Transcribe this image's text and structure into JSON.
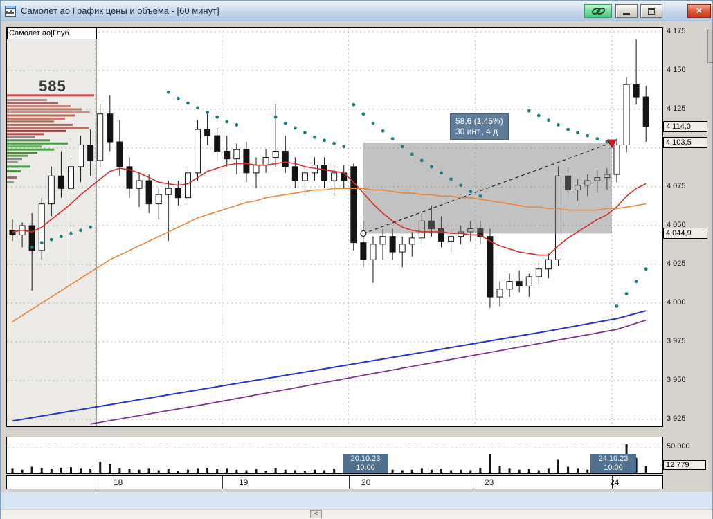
{
  "window": {
    "title": "Самолет ао График цены и объёма - [60 минут]"
  },
  "chart": {
    "instrument_label": "Самолет ао[Глуб",
    "profile_value": "585",
    "tooltip": {
      "line1": "58,6 (1.45%)",
      "line2": "30 инт., 4 д"
    },
    "price_labels": [
      {
        "price": 4114.0,
        "label": "4 114,0"
      },
      {
        "price": 4103.5,
        "label": "4 103,5"
      },
      {
        "price": 4044.9,
        "label": "4 044,9"
      }
    ]
  },
  "volume_pane": {
    "axis_label": "50 000",
    "current_label": "12 779",
    "badges": [
      {
        "date": "20.10.23",
        "time": "10:00"
      },
      {
        "date": "24.10.23",
        "time": "10:00"
      }
    ]
  },
  "time_axis": {
    "labels": [
      "18",
      "19",
      "20",
      "23",
      "24"
    ]
  },
  "chart_data": {
    "type": "candlestick",
    "instrument": "Самолет ао",
    "interval": "60 минут",
    "price_axis": {
      "min": 3925,
      "max": 4175,
      "step": 25,
      "ticks": [
        {
          "value": 4175,
          "label": "4 175"
        },
        {
          "value": 4150,
          "label": "4 150"
        },
        {
          "value": 4125,
          "label": "4 125"
        },
        {
          "value": 4075,
          "label": "4 075"
        },
        {
          "value": 4050,
          "label": "4 050"
        },
        {
          "value": 4025,
          "label": "4 025"
        },
        {
          "value": 4000,
          "label": "4 000"
        },
        {
          "value": 3975,
          "label": "3 975"
        },
        {
          "value": 3950,
          "label": "3 950"
        },
        {
          "value": 3925,
          "label": "3 925"
        }
      ]
    },
    "grid_prices": [
      4175,
      4150,
      4125,
      4100,
      4075,
      4050,
      4025,
      4000,
      3975,
      3950,
      3925
    ],
    "day_start_indices": [
      9,
      22,
      35,
      48,
      62
    ],
    "candles": [
      [
        4047,
        4054,
        4040,
        4044
      ],
      [
        4044,
        4052,
        4036,
        4050
      ],
      [
        4050,
        4058,
        4008,
        4034
      ],
      [
        4034,
        4068,
        4028,
        4064
      ],
      [
        4064,
        4088,
        4056,
        4082
      ],
      [
        4082,
        4098,
        4068,
        4074
      ],
      [
        4074,
        4094,
        4010,
        4088
      ],
      [
        4088,
        4108,
        4078,
        4102
      ],
      [
        4102,
        4112,
        4082,
        4092
      ],
      [
        4092,
        4128,
        4088,
        4122
      ],
      [
        4122,
        4134,
        4098,
        4104
      ],
      [
        4104,
        4118,
        4082,
        4088
      ],
      [
        4088,
        4094,
        4068,
        4074
      ],
      [
        4074,
        4084,
        4062,
        4079
      ],
      [
        4079,
        4083,
        4058,
        4064
      ],
      [
        4064,
        4074,
        4054,
        4070
      ],
      [
        4070,
        4079,
        4040,
        4074
      ],
      [
        4074,
        4079,
        4063,
        4068
      ],
      [
        4068,
        4088,
        4064,
        4084
      ],
      [
        4084,
        4118,
        4079,
        4112
      ],
      [
        4112,
        4123,
        4102,
        4108
      ],
      [
        4108,
        4113,
        4092,
        4098
      ],
      [
        4098,
        4108,
        4088,
        4093
      ],
      [
        4093,
        4103,
        4083,
        4099
      ],
      [
        4099,
        4104,
        4078,
        4084
      ],
      [
        4084,
        4094,
        4074,
        4089
      ],
      [
        4089,
        4099,
        4084,
        4094
      ],
      [
        4094,
        4128,
        4088,
        4098
      ],
      [
        4098,
        4108,
        4084,
        4088
      ],
      [
        4088,
        4094,
        4074,
        4079
      ],
      [
        4079,
        4089,
        4069,
        4084
      ],
      [
        4084,
        4094,
        4079,
        4089
      ],
      [
        4089,
        4094,
        4074,
        4079
      ],
      [
        4079,
        4089,
        4069,
        4084
      ],
      [
        4084,
        4089,
        4074,
        4079
      ],
      [
        4088,
        4090,
        4034,
        4039
      ],
      [
        4039,
        4053,
        4023,
        4028
      ],
      [
        4028,
        4043,
        4013,
        4038
      ],
      [
        4038,
        4048,
        4028,
        4043
      ],
      [
        4043,
        4048,
        4028,
        4033
      ],
      [
        4033,
        4043,
        4023,
        4038
      ],
      [
        4038,
        4046,
        4030,
        4042
      ],
      [
        4042,
        4058,
        4038,
        4053
      ],
      [
        4053,
        4063,
        4043,
        4048
      ],
      [
        4048,
        4056,
        4036,
        4040
      ],
      [
        4040,
        4048,
        4033,
        4043
      ],
      [
        4043,
        4050,
        4038,
        4046
      ],
      [
        4046,
        4053,
        4040,
        4048
      ],
      [
        4048,
        4053,
        4038,
        4043
      ],
      [
        4043,
        4048,
        3997,
        4004
      ],
      [
        4004,
        4014,
        3998,
        4009
      ],
      [
        4009,
        4019,
        4004,
        4014
      ],
      [
        4014,
        4021,
        4007,
        4011
      ],
      [
        4011,
        4019,
        4004,
        4017
      ],
      [
        4017,
        4026,
        4012,
        4022
      ],
      [
        4022,
        4032,
        4016,
        4028
      ],
      [
        4028,
        4088,
        4024,
        4082
      ],
      [
        4082,
        4088,
        4068,
        4073
      ],
      [
        4073,
        4080,
        4066,
        4076
      ],
      [
        4076,
        4083,
        4069,
        4079
      ],
      [
        4079,
        4086,
        4071,
        4081
      ],
      [
        4081,
        4087,
        4073,
        4083
      ],
      [
        4083,
        4106,
        4078,
        4102
      ],
      [
        4102,
        4146,
        4097,
        4141
      ],
      [
        4141,
        4170,
        4128,
        4133
      ],
      [
        4133,
        4140,
        4104,
        4114
      ]
    ],
    "volumes_thousands": [
      8,
      6,
      12,
      9,
      7,
      10,
      11,
      8,
      7,
      22,
      18,
      9,
      7,
      6,
      8,
      5,
      7,
      4,
      6,
      8,
      10,
      7,
      8,
      6,
      5,
      7,
      4,
      9,
      6,
      5,
      4,
      6,
      5,
      7,
      5,
      20,
      12,
      9,
      7,
      6,
      5,
      6,
      8,
      6,
      7,
      5,
      6,
      5,
      10,
      38,
      14,
      8,
      6,
      7,
      5,
      8,
      26,
      12,
      8,
      6,
      5,
      6,
      18,
      58,
      30,
      12.779
    ],
    "ma_fast_red": [
      4046,
      4047,
      4046,
      4049,
      4054,
      4059,
      4064,
      4070,
      4075,
      4080,
      4085,
      4087,
      4086,
      4084,
      4081,
      4078,
      4077,
      4076,
      4077,
      4081,
      4085,
      4087,
      4089,
      4090,
      4090,
      4089,
      4089,
      4090,
      4091,
      4090,
      4088,
      4087,
      4086,
      4085,
      4084,
      4078,
      4071,
      4064,
      4058,
      4053,
      4049,
      4047,
      4046,
      4046,
      4046,
      4045,
      4045,
      4044,
      4044,
      4040,
      4037,
      4035,
      4033,
      4032,
      4031,
      4031,
      4037,
      4042,
      4046,
      4050,
      4054,
      4057,
      4062,
      4069,
      4074,
      4077
    ],
    "ma_slow_orange": [
      3988,
      3992,
      3996,
      4000,
      4004,
      4008,
      4012,
      4016,
      4020,
      4024,
      4028,
      4031,
      4034,
      4037,
      4040,
      4043,
      4046,
      4049,
      4052,
      4055,
      4057,
      4059,
      4061,
      4063,
      4065,
      4066,
      4068,
      4069,
      4070,
      4071,
      4072,
      4073,
      4073,
      4074,
      4074,
      4074,
      4074,
      4073,
      4073,
      4072,
      4071,
      4071,
      4070,
      4070,
      4069,
      4069,
      4068,
      4068,
      4067,
      4066,
      4065,
      4064,
      4063,
      4062,
      4062,
      4061,
      4061,
      4060,
      4060,
      4060,
      4060,
      4061,
      4061,
      4062,
      4063,
      4064
    ],
    "line_blue_knots": [
      [
        0,
        3924
      ],
      [
        20,
        3945
      ],
      [
        40,
        3966
      ],
      [
        55,
        3982
      ],
      [
        62,
        3990
      ],
      [
        65,
        3995
      ]
    ],
    "line_purple_knots": [
      [
        8,
        3922
      ],
      [
        20,
        3935
      ],
      [
        40,
        3958
      ],
      [
        55,
        3975
      ],
      [
        62,
        3983
      ],
      [
        65,
        3989
      ]
    ],
    "sar_teal": [
      [
        [
          2,
          4036
        ],
        [
          3,
          4039
        ],
        [
          4,
          4041
        ],
        [
          5,
          4043
        ],
        [
          6,
          4045
        ],
        [
          7,
          4047
        ],
        [
          8,
          4049
        ]
      ],
      [
        [
          16,
          4136
        ],
        [
          17,
          4132
        ],
        [
          18,
          4129
        ],
        [
          19,
          4126
        ],
        [
          20,
          4123
        ],
        [
          21,
          4120
        ],
        [
          22,
          4117
        ],
        [
          23,
          4115
        ]
      ],
      [
        [
          27,
          4120
        ],
        [
          28,
          4116
        ],
        [
          29,
          4113
        ],
        [
          30,
          4110
        ],
        [
          31,
          4107
        ],
        [
          32,
          4105
        ],
        [
          33,
          4103
        ],
        [
          34,
          4101
        ]
      ],
      [
        [
          35,
          4128
        ],
        [
          36,
          4122
        ],
        [
          37,
          4116
        ],
        [
          38,
          4111
        ],
        [
          39,
          4106
        ],
        [
          40,
          4101
        ],
        [
          41,
          4096
        ],
        [
          42,
          4092
        ],
        [
          43,
          4088
        ],
        [
          44,
          4084
        ],
        [
          45,
          4080
        ],
        [
          46,
          4076
        ],
        [
          47,
          4072
        ],
        [
          48,
          4069
        ]
      ],
      [
        [
          53,
          4124
        ],
        [
          54,
          4121
        ],
        [
          55,
          4118
        ],
        [
          56,
          4115
        ],
        [
          57,
          4112
        ],
        [
          58,
          4110
        ],
        [
          59,
          4108
        ],
        [
          60,
          4106
        ],
        [
          61,
          4104
        ]
      ],
      [
        [
          62,
          3998
        ],
        [
          63,
          4006
        ],
        [
          64,
          4014
        ],
        [
          65,
          4022
        ]
      ]
    ],
    "volume_profile": [
      [
        4134,
        126,
        "#cc4444"
      ],
      [
        4131,
        58,
        "#bb8888"
      ],
      [
        4129,
        74,
        "#aa6666"
      ],
      [
        4127,
        92,
        "#cc8877"
      ],
      [
        4125,
        108,
        "#bb7766"
      ],
      [
        4123,
        120,
        "#dd8888"
      ],
      [
        4121,
        98,
        "#bb6655"
      ],
      [
        4119,
        84,
        "#cc7766"
      ],
      [
        4117,
        68,
        "#996655"
      ],
      [
        4115,
        95,
        "#aa6858"
      ],
      [
        4113,
        118,
        "#c27060"
      ],
      [
        4111,
        86,
        "#8b3a3a"
      ],
      [
        4109,
        54,
        "#aa5544"
      ],
      [
        4107,
        40,
        "#888888"
      ],
      [
        4105,
        62,
        "#55884a"
      ],
      [
        4103,
        88,
        "#44a044"
      ],
      [
        4101,
        50,
        "#66aa66"
      ],
      [
        4099,
        68,
        "#3faf3f"
      ],
      [
        4097,
        44,
        "#4a8a3a"
      ],
      [
        4095,
        30,
        "#6a9a5a"
      ],
      [
        4093,
        22,
        "#888888"
      ],
      [
        4091,
        16,
        "#999999"
      ],
      [
        4088,
        34,
        "#44a044"
      ],
      [
        4085,
        20,
        "#4a8a3a"
      ],
      [
        4081,
        14,
        "#aa6666"
      ],
      [
        4078,
        10,
        "#999999"
      ]
    ],
    "measurement": {
      "start_index": 36,
      "end_index": 61.5,
      "start_price": 4044.9,
      "end_price": 4103.5,
      "change_label": "58,6 (1.45%)",
      "span_label": "30 инт., 4 д"
    },
    "volume_axis": {
      "gridline_thousands": 50,
      "last": 12779
    }
  }
}
